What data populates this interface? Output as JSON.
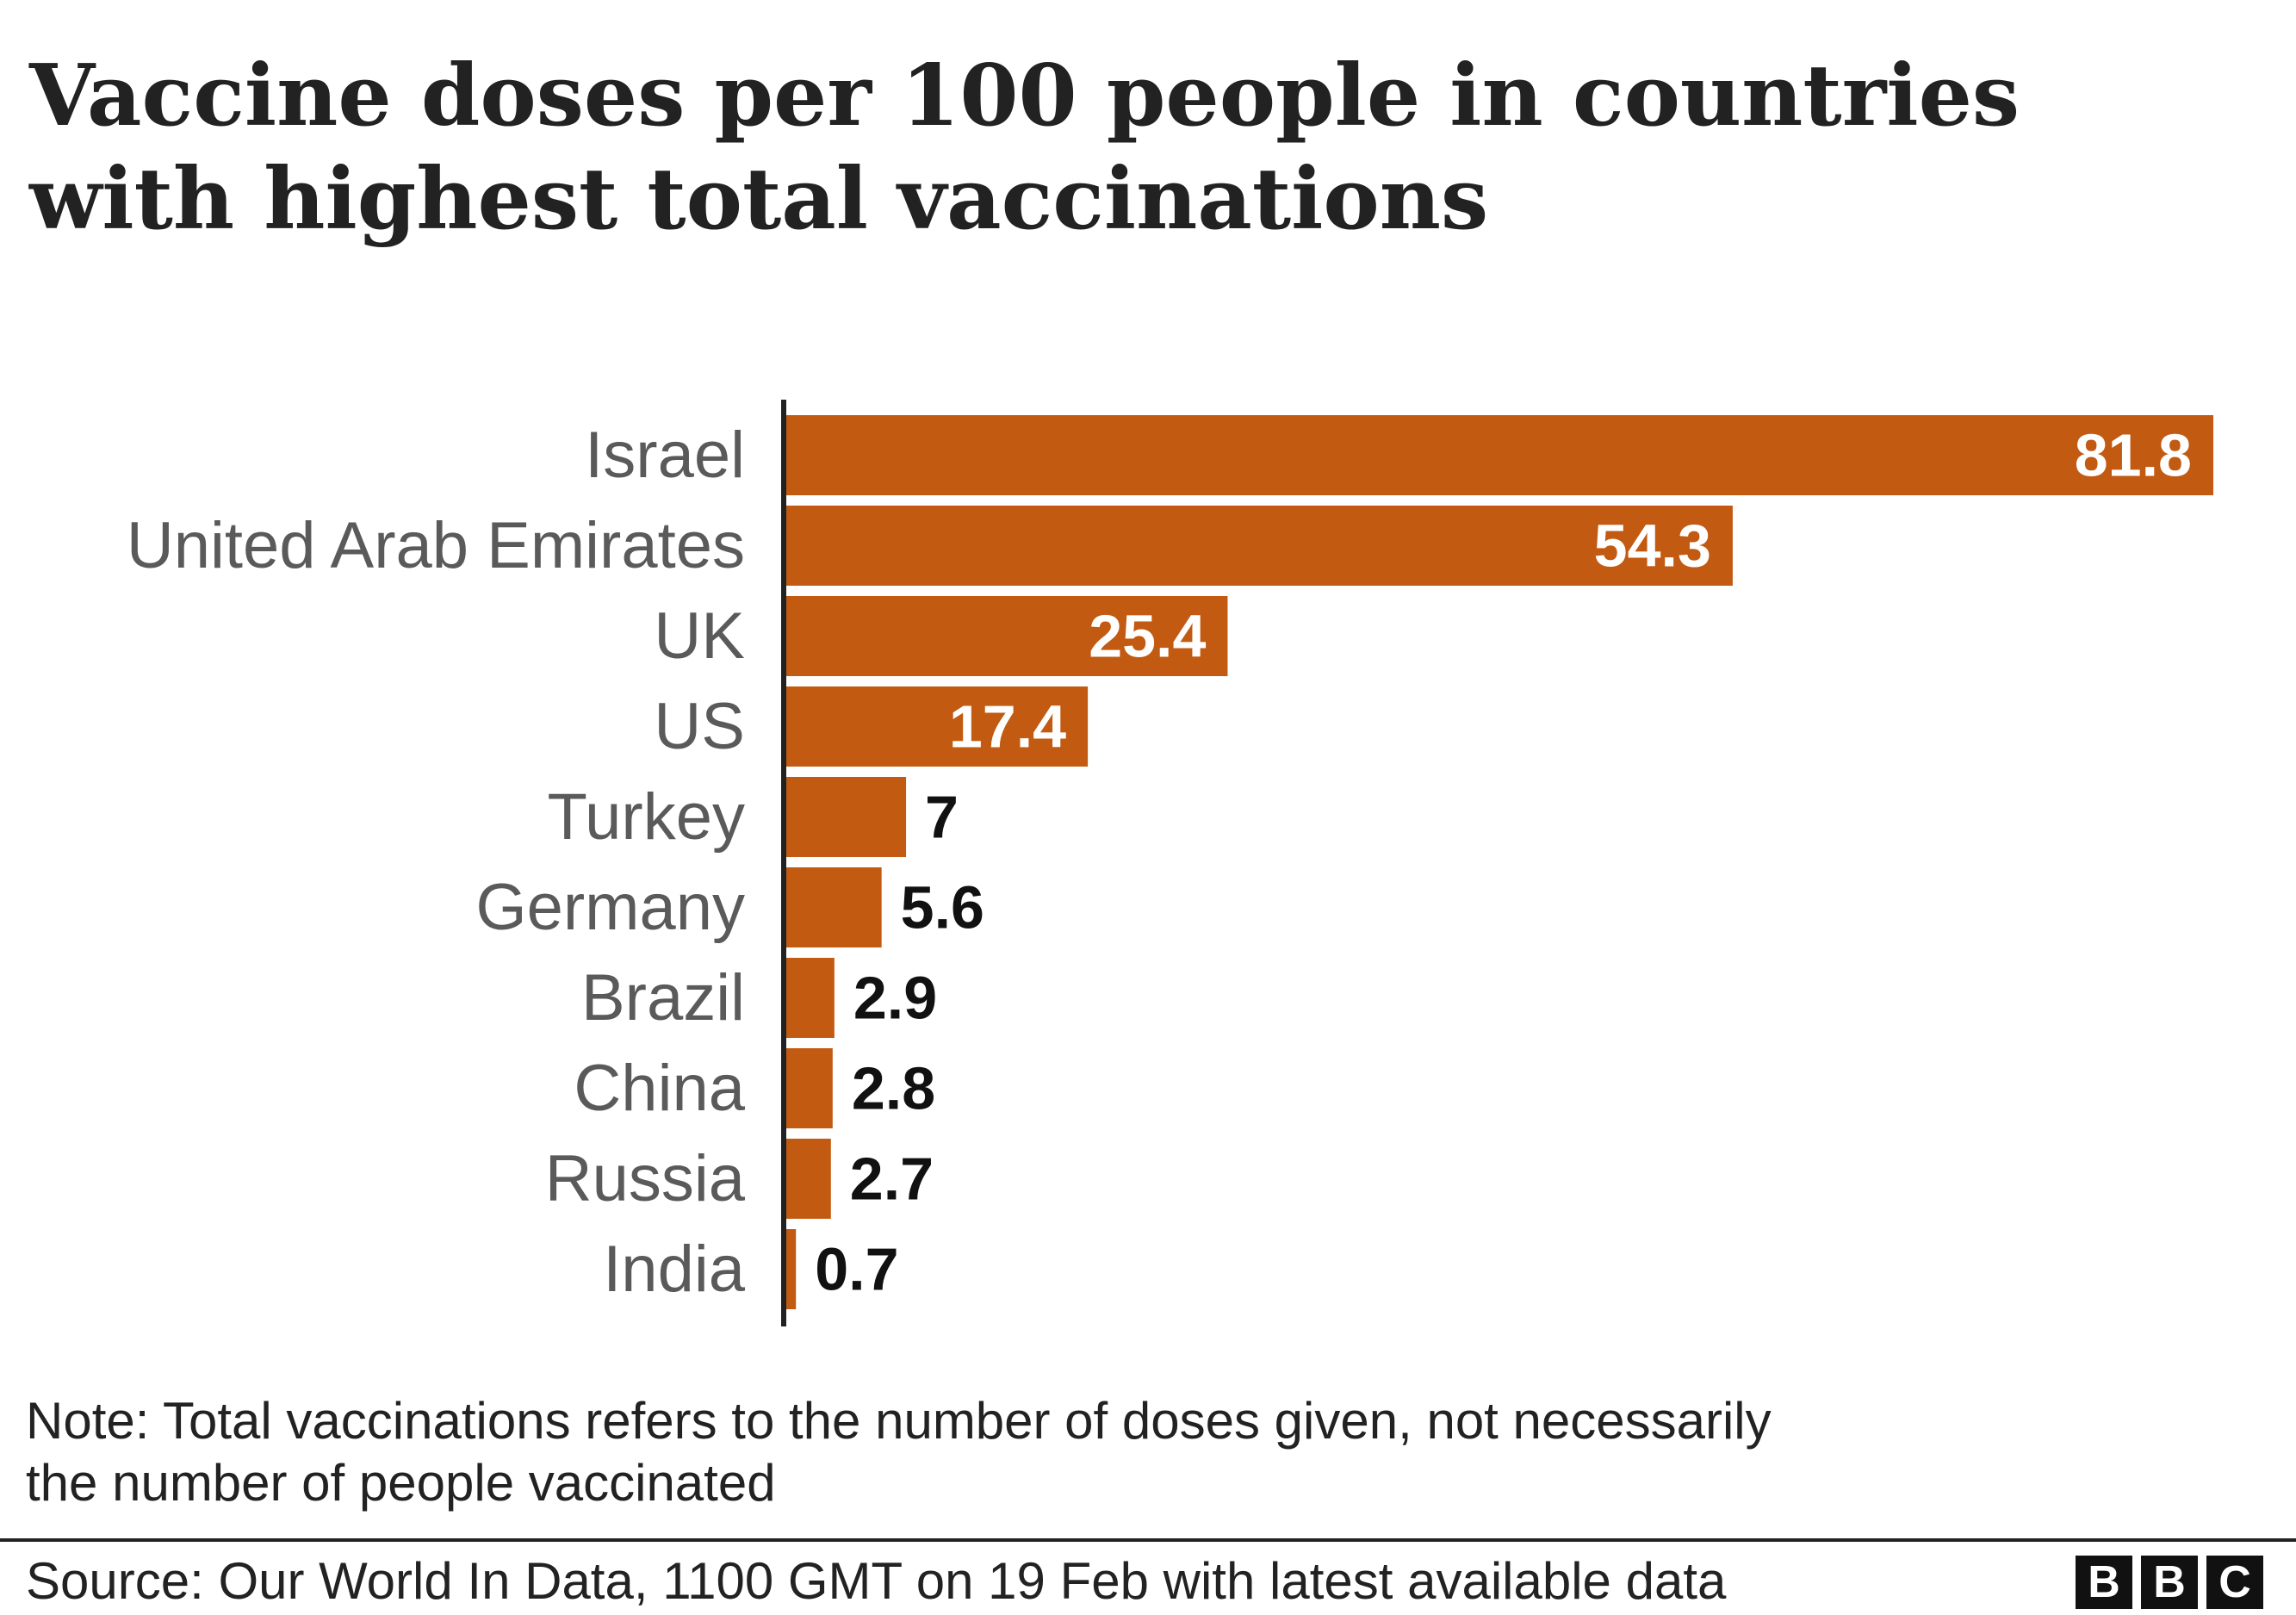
{
  "title_lines": [
    "Vaccine doses per 100 people in countries",
    "with highest total vaccinations"
  ],
  "chart_data": {
    "type": "bar",
    "orientation": "horizontal",
    "categories": [
      "Israel",
      "United Arab Emirates",
      "UK",
      "US",
      "Turkey",
      "Germany",
      "Brazil",
      "China",
      "Russia",
      "India"
    ],
    "values": [
      81.8,
      54.3,
      25.4,
      17.4,
      7,
      5.6,
      2.9,
      2.8,
      2.7,
      0.7
    ],
    "value_labels": [
      "81.8",
      "54.3",
      "25.4",
      "17.4",
      "7",
      "5.6",
      "2.9",
      "2.8",
      "2.7",
      "0.7"
    ],
    "xlim": [
      0,
      81.8
    ],
    "grid": false,
    "legend": "none",
    "colors": {
      "bar": "#c25a11",
      "axis": "#222222",
      "label_inside": "#ffffff",
      "label_outside": "#111111",
      "category_text": "#5a5a5a"
    }
  },
  "note_lines": [
    "Note: Total vaccinations refers to the number of doses given, not necessarily",
    "the number of people vaccinated"
  ],
  "source": "Source: Our World In Data, 1100 GMT on 19 Feb with latest available data",
  "logo": [
    "B",
    "B",
    "C"
  ]
}
